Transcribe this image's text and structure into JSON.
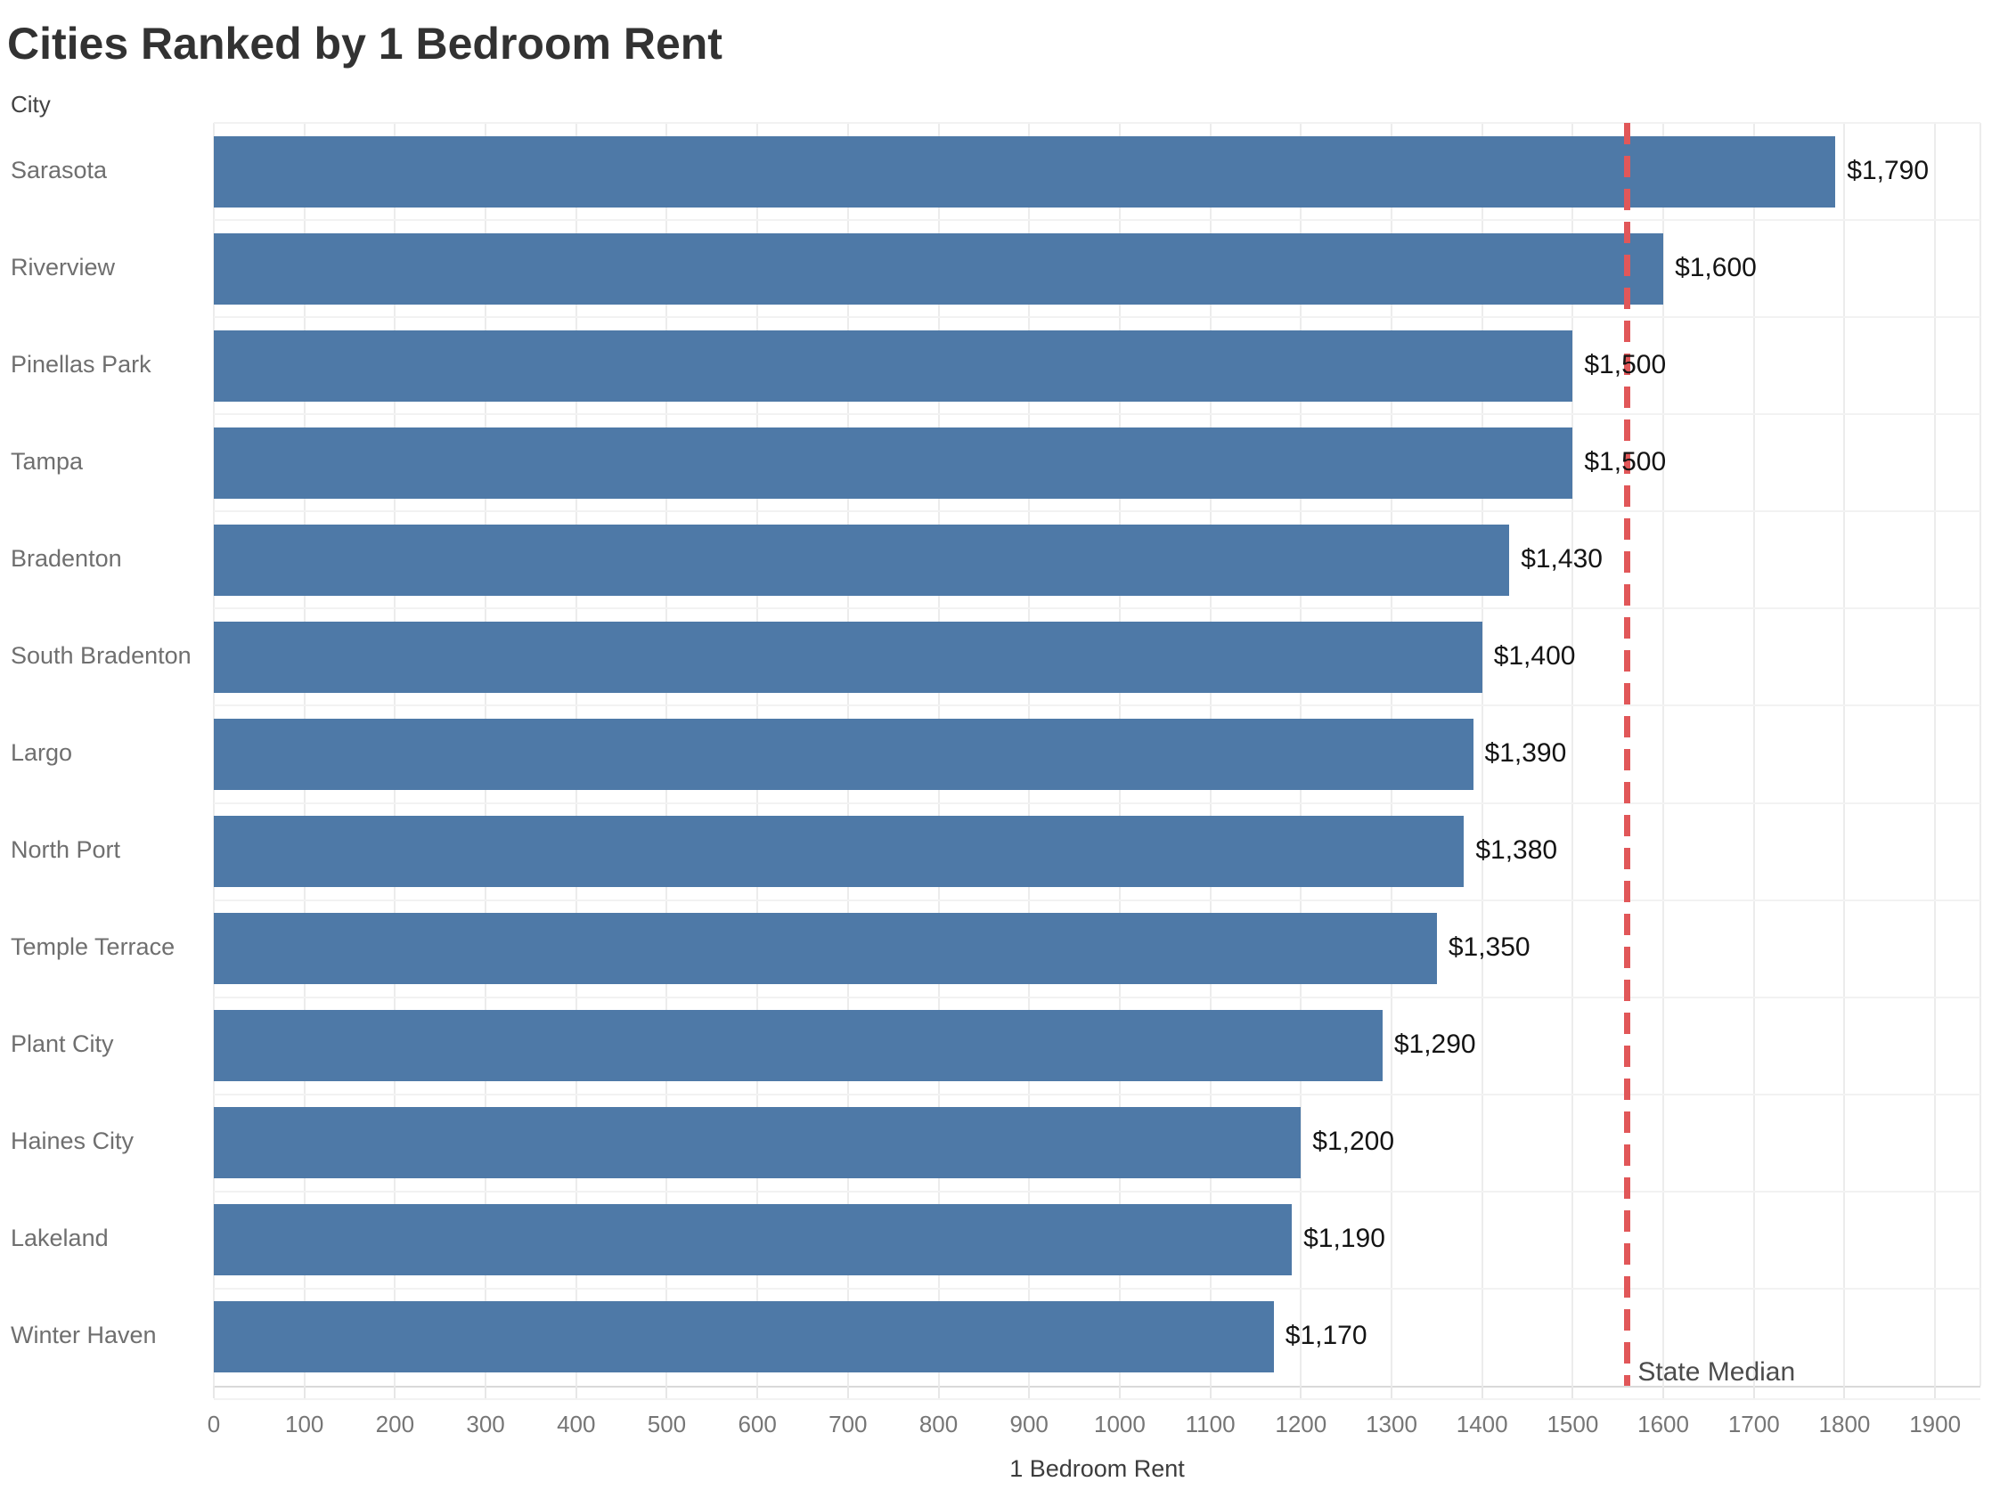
{
  "title": "Cities Ranked by 1 Bedroom Rent",
  "chart_data": {
    "type": "bar",
    "orientation": "horizontal",
    "title": "Cities Ranked by 1 Bedroom Rent",
    "ylabel_header": "City",
    "xlabel": "1 Bedroom Rent",
    "categories": [
      "Sarasota",
      "Riverview",
      "Pinellas Park",
      "Tampa",
      "Bradenton",
      "South Bradenton",
      "Largo",
      "North Port",
      "Temple Terrace",
      "Plant City",
      "Haines City",
      "Lakeland",
      "Winter Haven"
    ],
    "values": [
      1790,
      1600,
      1500,
      1500,
      1430,
      1400,
      1390,
      1380,
      1350,
      1290,
      1200,
      1190,
      1170
    ],
    "value_labels": [
      "$1,790",
      "$1,600",
      "$1,500",
      "$1,500",
      "$1,430",
      "$1,400",
      "$1,390",
      "$1,380",
      "$1,350",
      "$1,290",
      "$1,200",
      "$1,190",
      "$1,170"
    ],
    "x_ticks": [
      0,
      100,
      200,
      300,
      400,
      500,
      600,
      700,
      800,
      900,
      1000,
      1100,
      1200,
      1300,
      1400,
      1500,
      1600,
      1700,
      1800,
      1900
    ],
    "xlim": [
      0,
      1950
    ],
    "grid": true,
    "legend": "none",
    "bar_color": "#4e79a7",
    "reference_line": {
      "label": "State Median",
      "value": 1560,
      "color": "#e15759",
      "style": "dashed"
    }
  }
}
